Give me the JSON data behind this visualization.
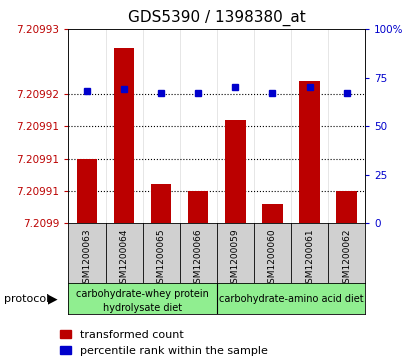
{
  "title": "GDS5390 / 1398380_at",
  "samples": [
    "GSM1200063",
    "GSM1200064",
    "GSM1200065",
    "GSM1200066",
    "GSM1200059",
    "GSM1200060",
    "GSM1200061",
    "GSM1200062"
  ],
  "red_values": [
    7.20991,
    7.209927,
    7.209906,
    7.209905,
    7.209916,
    7.209903,
    7.209922,
    7.209905
  ],
  "blue_values": [
    68,
    69,
    67,
    67,
    70,
    67,
    70,
    67
  ],
  "ymin": 7.2099,
  "ymax": 7.20993,
  "left_ticks": [
    7.2099,
    7.209905,
    7.20991,
    7.209915,
    7.20992,
    7.20993
  ],
  "left_tick_labels": [
    "7.2099",
    "7.20991",
    "7.20991",
    "7.20991",
    "7.20992",
    "7.20993"
  ],
  "right_ticks": [
    0,
    25,
    50,
    75,
    100
  ],
  "right_tick_labels": [
    "0",
    "25",
    "50",
    "75",
    "100%"
  ],
  "red_color": "#BB0000",
  "blue_color": "#0000CC",
  "bar_width": 0.55,
  "plot_bg_color": "#FFFFFF",
  "sample_bg_color": "#D0D0D0",
  "protocol_bg_color": "#90EE90",
  "title_fontsize": 11,
  "tick_fontsize": 7.5,
  "sample_fontsize": 6.5,
  "prot_fontsize": 7,
  "legend_fontsize": 8
}
